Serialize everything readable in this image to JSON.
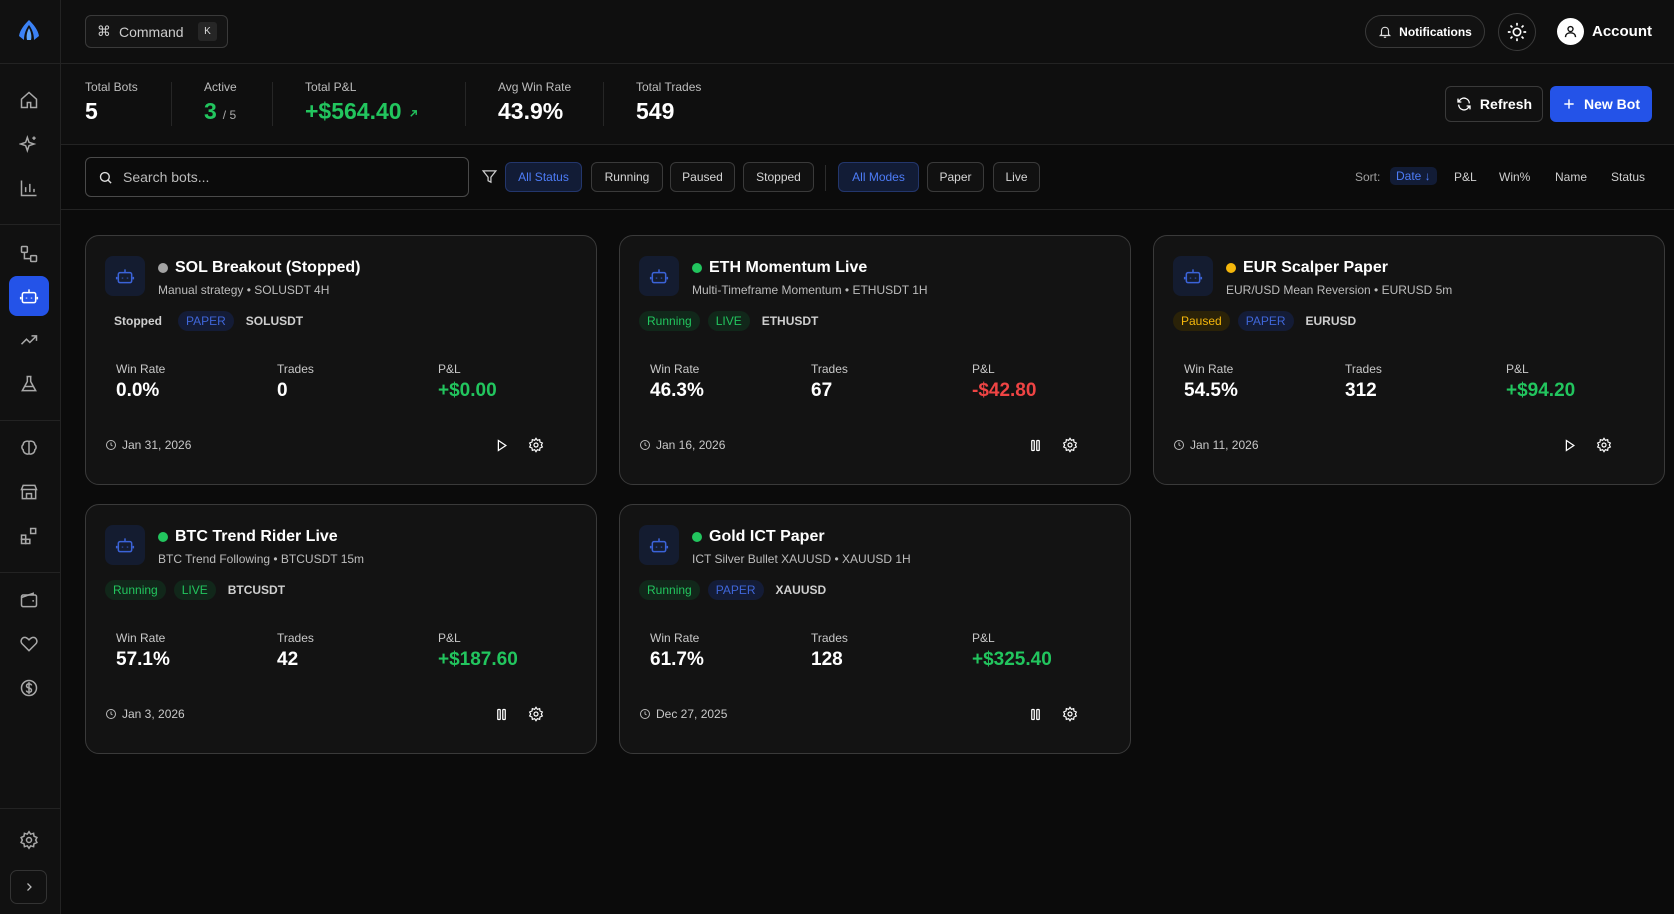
{
  "header": {
    "command_label": "Command",
    "command_shortcut": "K",
    "notifications_label": "Notifications",
    "account_label": "Account"
  },
  "sidebar": {
    "items": [
      "home-icon",
      "sparkles-icon",
      "bar-chart-icon",
      "workflow-icon",
      "bot-icon",
      "trending-up-icon",
      "flask-icon",
      "brain-icon",
      "store-icon",
      "apps-icon",
      "wallet-icon",
      "heart-icon",
      "dollar-icon"
    ],
    "active_item": "bot-icon",
    "footer": [
      "settings-icon",
      "chevron-right-icon"
    ]
  },
  "stats": {
    "total_bots": {
      "label": "Total Bots",
      "value": "5"
    },
    "active": {
      "label": "Active",
      "value": "3",
      "sub": "/ 5"
    },
    "total_pnl": {
      "label": "Total P&L",
      "value": "+$564.40"
    },
    "avg_win_rate": {
      "label": "Avg Win Rate",
      "value": "43.9%"
    },
    "total_trades": {
      "label": "Total Trades",
      "value": "549"
    }
  },
  "actions": {
    "refresh_label": "Refresh",
    "new_bot_label": "New Bot"
  },
  "filters": {
    "search_placeholder": "Search bots...",
    "status": [
      "All Status",
      "Running",
      "Paused",
      "Stopped"
    ],
    "status_selected": "All Status",
    "modes": [
      "All Modes",
      "Paper",
      "Live"
    ],
    "mode_selected": "All Modes",
    "sort_label": "Sort:",
    "sort_options": [
      "Date ↓",
      "P&L",
      "Win%",
      "Name",
      "Status"
    ],
    "sort_selected": "Date ↓"
  },
  "bots": [
    {
      "name": "SOL Breakout (Stopped)",
      "subtitle": "Manual strategy • SOLUSDT 4H",
      "status": "Stopped",
      "mode": "PAPER",
      "symbol": "SOLUSDT",
      "win_rate_label": "Win Rate",
      "win_rate": "0.0%",
      "trades_label": "Trades",
      "trades": "0",
      "pnl_label": "P&L",
      "pnl": "+$0.00",
      "date": "Jan 31, 2026",
      "action": "play"
    },
    {
      "name": "ETH Momentum Live",
      "subtitle": "Multi-Timeframe Momentum • ETHUSDT 1H",
      "status": "Running",
      "mode": "LIVE",
      "symbol": "ETHUSDT",
      "win_rate_label": "Win Rate",
      "win_rate": "46.3%",
      "trades_label": "Trades",
      "trades": "67",
      "pnl_label": "P&L",
      "pnl": "-$42.80",
      "date": "Jan 16, 2026",
      "action": "pause"
    },
    {
      "name": "EUR Scalper Paper",
      "subtitle": "EUR/USD Mean Reversion • EURUSD 5m",
      "status": "Paused",
      "mode": "PAPER",
      "symbol": "EURUSD",
      "win_rate_label": "Win Rate",
      "win_rate": "54.5%",
      "trades_label": "Trades",
      "trades": "312",
      "pnl_label": "P&L",
      "pnl": "+$94.20",
      "date": "Jan 11, 2026",
      "action": "play"
    },
    {
      "name": "BTC Trend Rider Live",
      "subtitle": "BTC Trend Following • BTCUSDT 15m",
      "status": "Running",
      "mode": "LIVE",
      "symbol": "BTCUSDT",
      "win_rate_label": "Win Rate",
      "win_rate": "57.1%",
      "trades_label": "Trades",
      "trades": "42",
      "pnl_label": "P&L",
      "pnl": "+$187.60",
      "date": "Jan 3, 2026",
      "action": "pause"
    },
    {
      "name": "Gold ICT Paper",
      "subtitle": "ICT Silver Bullet XAUUSD • XAUUSD 1H",
      "status": "Running",
      "mode": "PAPER",
      "symbol": "XAUUSD",
      "win_rate_label": "Win Rate",
      "win_rate": "61.7%",
      "trades_label": "Trades",
      "trades": "128",
      "pnl_label": "P&L",
      "pnl": "+$325.40",
      "date": "Dec 27, 2025",
      "action": "pause"
    }
  ],
  "colors": {
    "accent": "#2453e8",
    "positive": "#22c55e",
    "negative": "#ef4444",
    "paused": "#f5b70b",
    "background": "#0b0b0b"
  }
}
